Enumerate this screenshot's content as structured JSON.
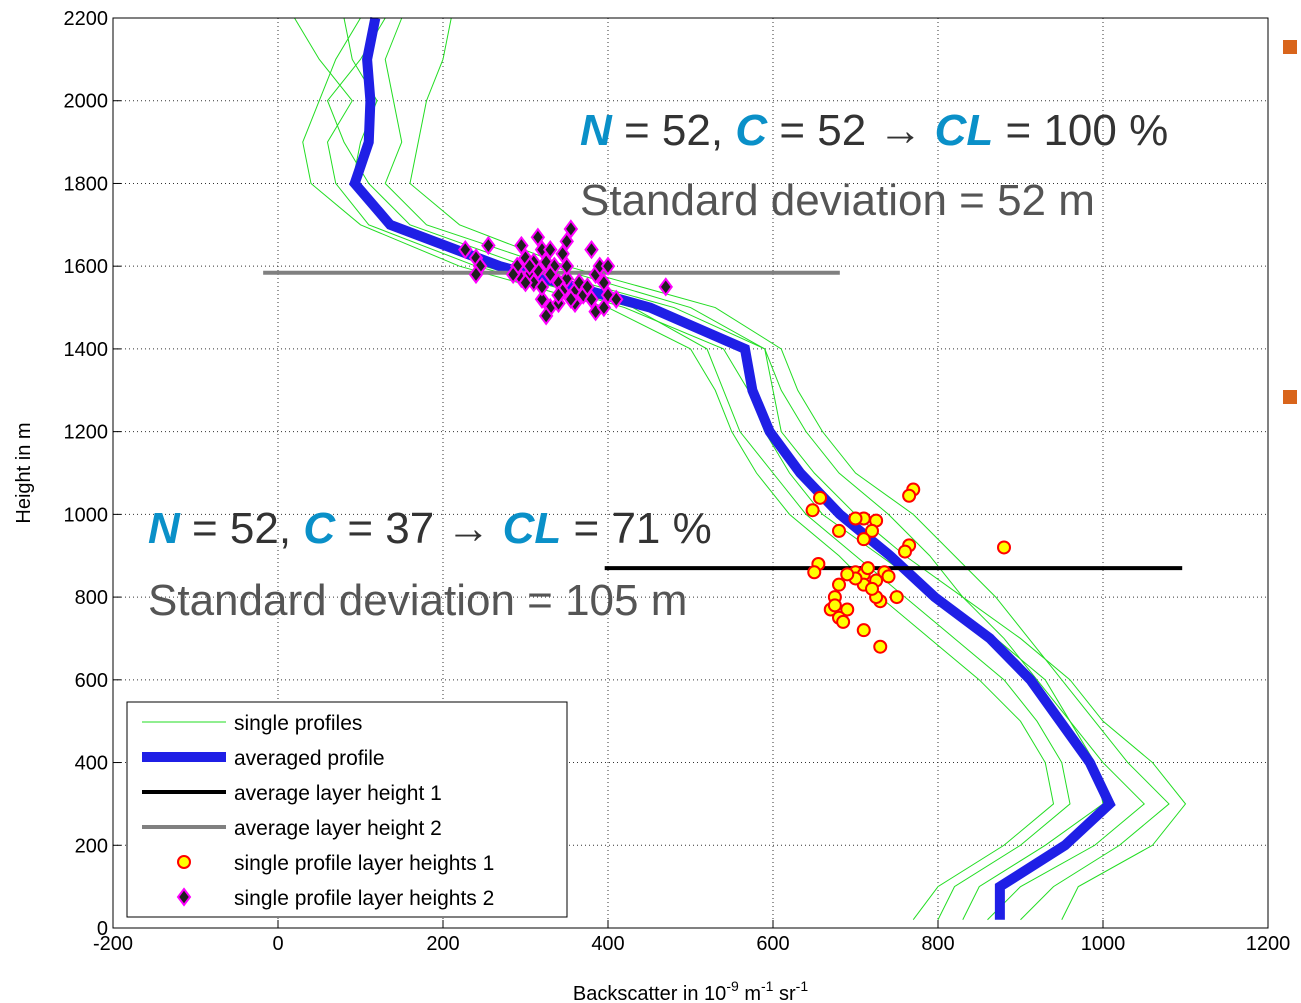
{
  "chart_data": {
    "type": "profile",
    "xlabel": [
      {
        "text": "Backscatter in 10"
      },
      {
        "text": "-9",
        "sup": true
      },
      {
        "text": " m"
      },
      {
        "text": "-1",
        "sup": true
      },
      {
        "text": " sr"
      },
      {
        "text": "-1",
        "sup": true
      }
    ],
    "ylabel": "Height in m",
    "xlim": [
      -200,
      1200
    ],
    "ylim": [
      0,
      2200
    ],
    "xticks": [
      -200,
      0,
      200,
      400,
      600,
      800,
      1000,
      1200
    ],
    "yticks": [
      0,
      200,
      400,
      600,
      800,
      1000,
      1200,
      1400,
      1600,
      1800,
      2000,
      2200
    ],
    "grid": true,
    "heights": [
      20,
      100,
      200,
      300,
      400,
      500,
      600,
      700,
      800,
      900,
      1000,
      1100,
      1200,
      1300,
      1400,
      1500,
      1600,
      1700,
      1800,
      1900,
      2000,
      2100,
      2200
    ],
    "single_profiles": {
      "name": "single profiles",
      "color": "#22dd22",
      "profiles": [
        [
          860,
          900,
          990,
          1050,
          1000,
          960,
          930,
          870,
          800,
          730,
          660,
          620,
          590,
          570,
          540,
          420,
          250,
          140,
          90,
          100,
          120,
          90,
          80
        ],
        [
          830,
          850,
          930,
          1000,
          990,
          960,
          920,
          880,
          830,
          790,
          740,
          680,
          640,
          610,
          590,
          480,
          300,
          160,
          110,
          80,
          60,
          100,
          130
        ],
        [
          950,
          970,
          1060,
          1100,
          1060,
          1000,
          960,
          900,
          830,
          760,
          700,
          650,
          610,
          600,
          590,
          500,
          330,
          180,
          130,
          150,
          140,
          130,
          150
        ],
        [
          800,
          820,
          900,
          960,
          950,
          920,
          880,
          820,
          760,
          700,
          640,
          600,
          560,
          540,
          520,
          430,
          240,
          110,
          70,
          60,
          90,
          50,
          20
        ],
        [
          900,
          940,
          1020,
          1080,
          1030,
          990,
          950,
          910,
          870,
          820,
          770,
          700,
          660,
          630,
          610,
          530,
          350,
          220,
          160,
          170,
          180,
          200,
          210
        ],
        [
          770,
          800,
          880,
          940,
          930,
          900,
          850,
          790,
          730,
          680,
          620,
          580,
          550,
          530,
          500,
          400,
          220,
          100,
          40,
          30,
          50,
          70,
          100
        ]
      ]
    },
    "averaged_profile": {
      "name": "averaged profile",
      "color": "#1f1fe6",
      "values": [
        875,
        875,
        954,
        1008,
        984,
        948,
        912,
        863,
        796,
        742,
        681,
        633,
        596,
        575,
        566,
        451,
        269,
        136,
        93,
        110,
        112,
        108,
        118
      ]
    },
    "layer_lines": [
      {
        "name": "average layer height 1",
        "color": "#000000",
        "x": [
          396,
          1096
        ],
        "y": [
          870,
          870
        ]
      },
      {
        "name": "average layer height 2",
        "color": "#808080",
        "x": [
          -18,
          681
        ],
        "y": [
          1584,
          1584
        ]
      }
    ],
    "layer_points": [
      {
        "name": "single profile layer heights 1",
        "marker": "circle",
        "color": "#ffff00",
        "edge": "#ff0000",
        "x": [
          657,
          648,
          710,
          725,
          700,
          770,
          765,
          720,
          680,
          710,
          765,
          760,
          880,
          655,
          650,
          700,
          710,
          735,
          725,
          710,
          680,
          750,
          730,
          725,
          675,
          670,
          690,
          680,
          685,
          710,
          730,
          720,
          740,
          700,
          675,
          715,
          690
        ],
        "y": [
          1040,
          1010,
          990,
          985,
          990,
          1060,
          1045,
          960,
          960,
          940,
          925,
          910,
          920,
          880,
          860,
          860,
          855,
          860,
          840,
          830,
          830,
          800,
          790,
          800,
          800,
          770,
          770,
          750,
          740,
          720,
          680,
          820,
          850,
          845,
          780,
          870,
          855
        ]
      },
      {
        "name": "single profile layer heights 2",
        "marker": "diamond",
        "color": "#202020",
        "edge": "#ff00ff",
        "x": [
          227,
          240,
          245,
          240,
          255,
          295,
          300,
          290,
          295,
          305,
          315,
          320,
          325,
          315,
          310,
          330,
          335,
          345,
          355,
          350,
          350,
          340,
          360,
          345,
          320,
          330,
          325,
          340,
          360,
          370,
          380,
          385,
          395,
          400,
          410,
          385,
          390,
          380,
          400,
          470,
          300,
          310,
          330,
          365,
          375,
          350,
          320,
          305,
          285,
          340,
          355,
          395
        ],
        "y": [
          1640,
          1620,
          1600,
          1580,
          1650,
          1650,
          1620,
          1600,
          1570,
          1580,
          1670,
          1640,
          1610,
          1590,
          1560,
          1640,
          1600,
          1630,
          1690,
          1660,
          1570,
          1560,
          1540,
          1540,
          1520,
          1500,
          1480,
          1510,
          1510,
          1530,
          1520,
          1490,
          1500,
          1530,
          1520,
          1580,
          1600,
          1640,
          1600,
          1550,
          1560,
          1610,
          1580,
          1560,
          1550,
          1600,
          1550,
          1600,
          1580,
          1530,
          1520,
          1560
        ]
      }
    ],
    "annotations": [
      {
        "runs": [
          {
            "text": "N",
            "em": true
          },
          {
            "text": " = 52, "
          },
          {
            "text": "C",
            "em": true
          },
          {
            "text": " = 52 → "
          },
          {
            "text": "CL",
            "em": true
          },
          {
            "text": " = 100 %"
          }
        ],
        "note": "Standard deviation = 52 m"
      },
      {
        "runs": [
          {
            "text": "N",
            "em": true
          },
          {
            "text": " = 52, "
          },
          {
            "text": "C",
            "em": true
          },
          {
            "text": " = 37 → "
          },
          {
            "text": "CL",
            "em": true
          },
          {
            "text": " = 71 %"
          }
        ],
        "note": "Standard deviation = 105 m"
      }
    ]
  }
}
